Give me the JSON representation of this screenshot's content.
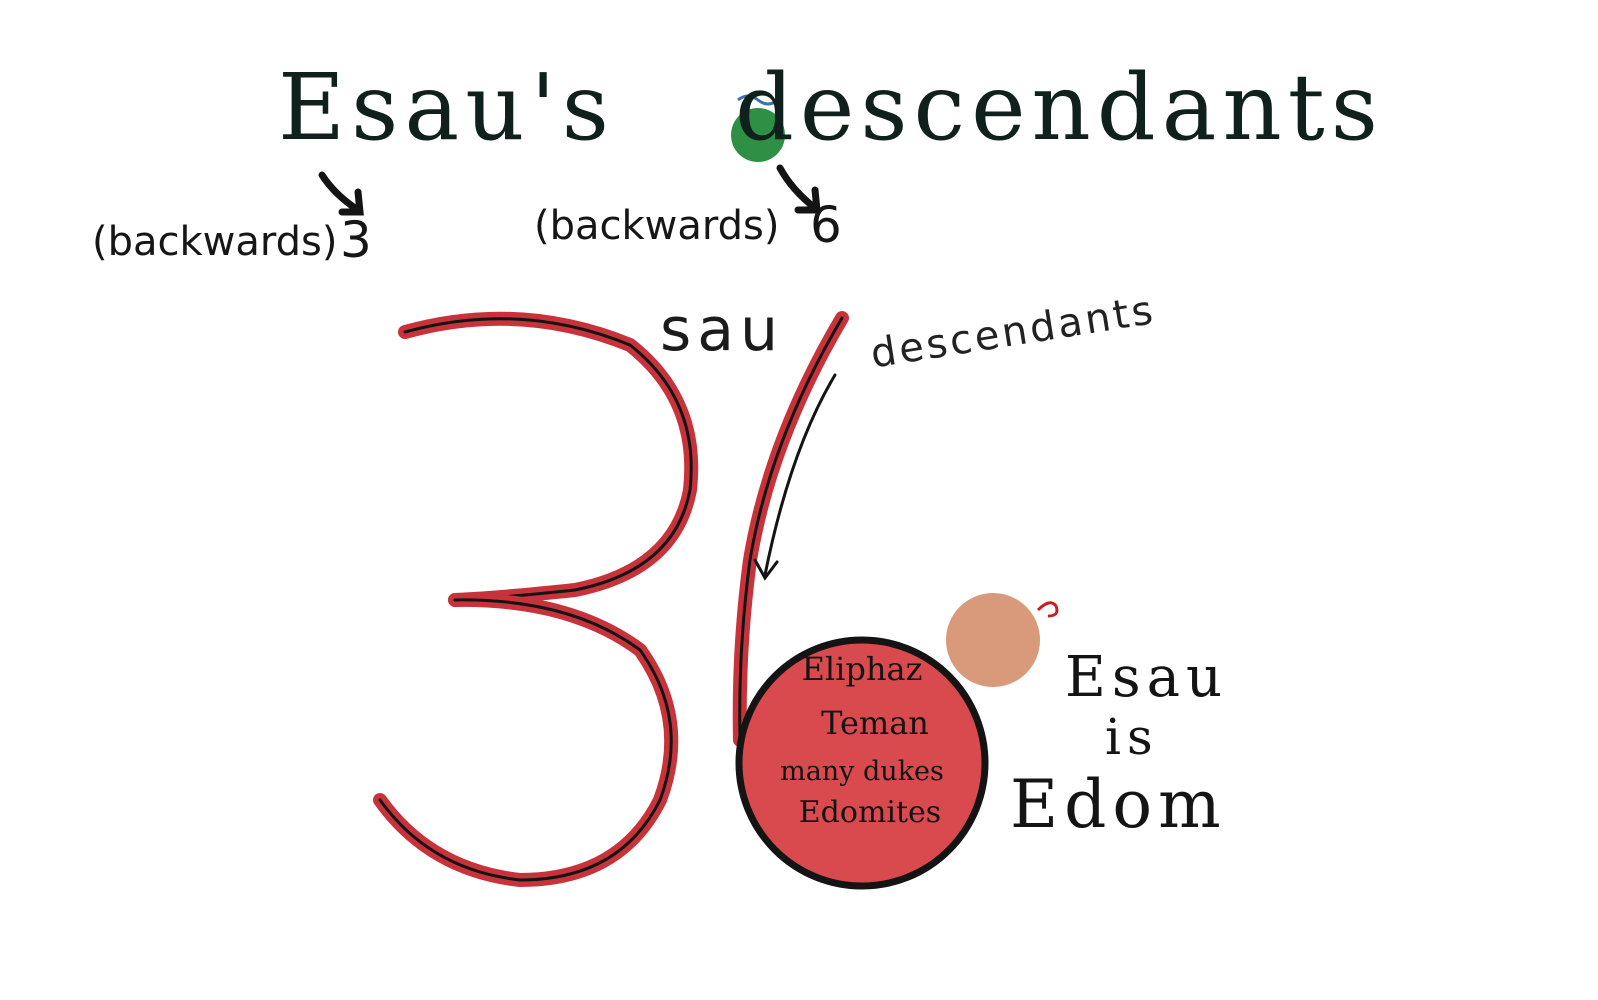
{
  "title": {
    "first_word": "Esau's",
    "second_word": "descendants"
  },
  "annotations": {
    "left_label": "(backwards)",
    "left_digit": "3",
    "right_label": "(backwards)",
    "right_digit": "6"
  },
  "numeral": {
    "sau_label": "sau",
    "descendants_label": "descendants"
  },
  "circle_names": [
    "Eliphaz",
    "Teman",
    "many dukes",
    "Edomites"
  ],
  "edom_block": {
    "line1": "Esau",
    "line2": "is",
    "line3": "Edom"
  },
  "colors": {
    "ink": "#141414",
    "numeral_red": "#c8323a",
    "circle_fill": "#d84a4e",
    "green_letter": "#2f8f45",
    "head_skin": "#d89a7a",
    "hair_red": "#c82020"
  }
}
